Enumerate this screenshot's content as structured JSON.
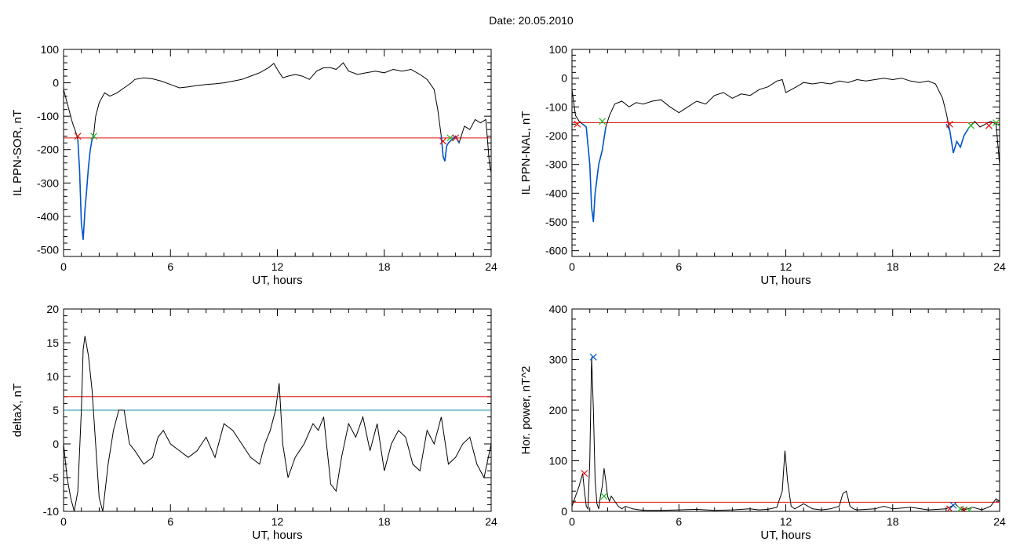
{
  "page": {
    "title": "Date:  20.05.2010"
  },
  "colors": {
    "black": "#000000",
    "red": "#e01010",
    "green": "#22bb22",
    "blue": "#0055cc",
    "cyan": "#1a8fa0"
  },
  "chart_data": [
    {
      "type": "line",
      "id": "sor",
      "xlabel": "UT, hours",
      "ylabel": "IL PPN-SOR, nT",
      "xlim": [
        0,
        24
      ],
      "ylim": [
        -520,
        100
      ],
      "xticks": [
        0,
        6,
        12,
        18,
        24
      ],
      "yticks": [
        -500,
        -400,
        -300,
        -200,
        -100,
        0,
        100
      ],
      "series": [
        {
          "color": "black",
          "x": [
            0,
            0.1,
            0.3,
            0.5,
            0.7,
            0.8,
            0.9,
            1.0,
            1.1,
            1.2,
            1.3,
            1.4,
            1.5,
            1.6,
            1.7,
            1.8,
            2.0,
            2.3,
            2.6,
            3.0,
            3.4,
            3.8,
            4.0,
            4.5,
            5.0,
            5.5,
            6.0,
            6.5,
            7.0,
            7.5,
            8.0,
            8.5,
            9.0,
            9.5,
            10.0,
            10.5,
            11.0,
            11.5,
            11.8,
            12.0,
            12.3,
            12.6,
            13.0,
            13.4,
            13.8,
            14.2,
            14.6,
            15.0,
            15.3,
            15.7,
            16.0,
            16.5,
            17.0,
            17.5,
            18.0,
            18.5,
            19.0,
            19.5,
            20.0,
            20.4,
            20.8,
            21.0,
            21.2,
            21.3,
            21.4,
            21.5,
            21.6,
            21.8,
            22.0,
            22.2,
            22.5,
            22.8,
            23.1,
            23.4,
            23.7,
            23.9,
            24.0
          ],
          "y": [
            -20,
            -40,
            -80,
            -120,
            -150,
            -170,
            -260,
            -420,
            -470,
            -380,
            -320,
            -250,
            -200,
            -170,
            -150,
            -100,
            -60,
            -30,
            -40,
            -30,
            -15,
            0,
            10,
            15,
            12,
            5,
            -5,
            -15,
            -12,
            -8,
            -5,
            -3,
            0,
            5,
            10,
            20,
            30,
            45,
            58,
            40,
            15,
            20,
            25,
            20,
            10,
            35,
            45,
            45,
            40,
            60,
            35,
            25,
            30,
            35,
            30,
            40,
            35,
            40,
            25,
            10,
            -20,
            -80,
            -160,
            -220,
            -235,
            -190,
            -180,
            -170,
            -160,
            -180,
            -130,
            -140,
            -110,
            -120,
            -110,
            -240,
            -270
          ]
        },
        {
          "color": "blue",
          "x": [
            0.8,
            0.9,
            1.0,
            1.1,
            1.2,
            1.3,
            1.4,
            1.5,
            1.6,
            1.7
          ],
          "y": [
            -170,
            -260,
            -420,
            -470,
            -380,
            -320,
            -250,
            -200,
            -170,
            -160
          ]
        },
        {
          "color": "blue",
          "x": [
            21.2,
            21.3,
            21.4,
            21.5,
            21.6,
            21.8,
            22.0,
            22.2
          ],
          "y": [
            -160,
            -220,
            -235,
            -190,
            -180,
            -170,
            -160,
            -180
          ]
        }
      ],
      "hlines": [
        {
          "y": -165,
          "color": "red"
        }
      ],
      "markers": [
        {
          "x": 0.8,
          "y": -160,
          "color": "red",
          "symbol": "x"
        },
        {
          "x": 1.7,
          "y": -160,
          "color": "green",
          "symbol": "x"
        },
        {
          "x": 21.3,
          "y": -175,
          "color": "red",
          "symbol": "x"
        },
        {
          "x": 21.7,
          "y": -165,
          "color": "green",
          "symbol": "x"
        },
        {
          "x": 22.0,
          "y": -165,
          "color": "red",
          "symbol": "x"
        }
      ]
    },
    {
      "type": "line",
      "id": "nal",
      "xlabel": "UT, hours",
      "ylabel": "IL PPN-NAL, nT",
      "xlim": [
        0,
        24
      ],
      "ylim": [
        -620,
        100
      ],
      "xticks": [
        0,
        6,
        12,
        18,
        24
      ],
      "yticks": [
        -600,
        -500,
        -400,
        -300,
        -200,
        -100,
        0,
        100
      ],
      "series": [
        {
          "color": "black",
          "x": [
            0,
            0.2,
            0.4,
            0.6,
            0.8,
            1.0,
            1.1,
            1.2,
            1.3,
            1.5,
            1.7,
            1.9,
            2.1,
            2.4,
            2.8,
            3.2,
            3.6,
            4.0,
            4.5,
            5.0,
            5.5,
            6.0,
            6.5,
            7.0,
            7.5,
            8.0,
            8.5,
            9.0,
            9.5,
            10.0,
            10.5,
            11.0,
            11.5,
            11.8,
            12.0,
            12.3,
            12.6,
            13.0,
            13.5,
            14.0,
            14.5,
            15.0,
            15.5,
            16.0,
            16.5,
            17.0,
            17.5,
            18.0,
            18.5,
            19.0,
            19.5,
            20.0,
            20.4,
            20.8,
            21.0,
            21.2,
            21.4,
            21.6,
            21.8,
            22.0,
            22.3,
            22.6,
            22.9,
            23.2,
            23.5,
            23.8,
            24.0
          ],
          "y": [
            -40,
            -130,
            -150,
            -160,
            -170,
            -300,
            -450,
            -500,
            -400,
            -300,
            -250,
            -170,
            -130,
            -90,
            -80,
            -100,
            -85,
            -90,
            -80,
            -75,
            -100,
            -120,
            -100,
            -80,
            -90,
            -60,
            -50,
            -70,
            -55,
            -60,
            -40,
            -30,
            -10,
            -5,
            -50,
            -40,
            -30,
            -15,
            -20,
            -15,
            -20,
            -10,
            -15,
            -5,
            -10,
            -5,
            0,
            -5,
            0,
            -10,
            -15,
            -10,
            -20,
            -70,
            -120,
            -180,
            -260,
            -220,
            -240,
            -200,
            -170,
            -150,
            -170,
            -160,
            -150,
            -160,
            -300
          ]
        },
        {
          "color": "blue",
          "x": [
            0.6,
            0.8,
            1.0,
            1.1,
            1.2,
            1.3,
            1.5,
            1.7,
            1.9
          ],
          "y": [
            -160,
            -170,
            -300,
            -450,
            -500,
            -400,
            -300,
            -250,
            -170
          ]
        },
        {
          "color": "blue",
          "x": [
            21.0,
            21.2,
            21.4,
            21.6,
            21.8,
            22.0,
            22.3
          ],
          "y": [
            -160,
            -180,
            -260,
            -220,
            -240,
            -200,
            -170
          ]
        }
      ],
      "hlines": [
        {
          "y": -155,
          "color": "red"
        }
      ],
      "markers": [
        {
          "x": 0.3,
          "y": -160,
          "color": "red",
          "symbol": "x"
        },
        {
          "x": 1.7,
          "y": -150,
          "color": "green",
          "symbol": "x"
        },
        {
          "x": 21.2,
          "y": -160,
          "color": "red",
          "symbol": "x"
        },
        {
          "x": 22.4,
          "y": -165,
          "color": "green",
          "symbol": "x"
        },
        {
          "x": 23.4,
          "y": -165,
          "color": "red",
          "symbol": "x"
        },
        {
          "x": 23.8,
          "y": -155,
          "color": "green",
          "symbol": "x"
        }
      ]
    },
    {
      "type": "line",
      "id": "deltax",
      "xlabel": "UT, hours",
      "ylabel": "deltaX, nT",
      "xlim": [
        0,
        24
      ],
      "ylim": [
        -10,
        20
      ],
      "xticks": [
        0,
        6,
        12,
        18,
        24
      ],
      "yticks": [
        -10,
        -5,
        0,
        5,
        10,
        15,
        20
      ],
      "series": [
        {
          "color": "black",
          "x": [
            0,
            0.2,
            0.4,
            0.6,
            0.8,
            1.0,
            1.1,
            1.2,
            1.4,
            1.6,
            1.8,
            2.0,
            2.2,
            2.5,
            2.8,
            3.1,
            3.4,
            3.7,
            4.0,
            4.5,
            5.0,
            5.3,
            5.6,
            6.0,
            6.5,
            7.0,
            7.5,
            8.0,
            8.5,
            9.0,
            9.5,
            10.0,
            10.5,
            11.0,
            11.3,
            11.6,
            11.9,
            12.1,
            12.3,
            12.6,
            13.0,
            13.5,
            14.0,
            14.3,
            14.6,
            15.0,
            15.3,
            15.6,
            16.0,
            16.4,
            16.8,
            17.2,
            17.6,
            18.0,
            18.4,
            18.8,
            19.2,
            19.6,
            20.0,
            20.4,
            20.8,
            21.2,
            21.6,
            22.0,
            22.4,
            22.8,
            23.2,
            23.6,
            24.0
          ],
          "y": [
            0,
            -5,
            -8,
            -10,
            -7,
            5,
            14,
            16,
            13,
            8,
            0,
            -8,
            -10,
            -3,
            2,
            5,
            5,
            0,
            -1,
            -3,
            -2,
            1,
            2,
            0,
            -1,
            -2,
            -1,
            1,
            -2,
            3,
            2,
            0,
            -2,
            -3,
            0,
            2,
            5,
            9,
            0,
            -5,
            -2,
            0,
            3,
            2,
            4,
            -6,
            -7,
            -2,
            3,
            1,
            4,
            -1,
            3,
            -4,
            0,
            2,
            1,
            -3,
            -4,
            2,
            0,
            4,
            -3,
            -2,
            0,
            1,
            -3,
            -5,
            0
          ]
        }
      ],
      "hlines": [
        {
          "y": 7,
          "color": "red"
        },
        {
          "y": 5,
          "color": "cyan"
        }
      ],
      "markers": []
    },
    {
      "type": "line",
      "id": "power",
      "xlabel": "UT, hours",
      "ylabel": "Hor. power, nT^2",
      "xlim": [
        0,
        24
      ],
      "ylim": [
        0,
        400
      ],
      "xticks": [
        0,
        6,
        12,
        18,
        24
      ],
      "yticks": [
        0,
        100,
        200,
        300,
        400
      ],
      "series": [
        {
          "color": "black",
          "x": [
            0,
            0.2,
            0.4,
            0.6,
            0.7,
            0.8,
            0.9,
            1.0,
            1.1,
            1.2,
            1.3,
            1.4,
            1.5,
            1.6,
            1.7,
            1.8,
            1.9,
            2.0,
            2.1,
            2.2,
            2.4,
            2.6,
            2.8,
            3.0,
            3.4,
            3.8,
            4.2,
            5.0,
            6.0,
            7.0,
            8.0,
            9.0,
            10.0,
            10.5,
            11.0,
            11.5,
            11.8,
            11.95,
            12.1,
            12.3,
            12.5,
            13.0,
            13.5,
            14.0,
            14.5,
            15.0,
            15.2,
            15.4,
            15.6,
            15.8,
            16.0,
            17.0,
            17.5,
            18.0,
            19.0,
            20.0,
            21.0,
            21.3,
            21.5,
            21.8,
            22.0,
            22.5,
            23.0,
            23.5,
            23.8,
            24.0
          ],
          "y": [
            10,
            30,
            50,
            75,
            40,
            10,
            5,
            100,
            305,
            200,
            60,
            15,
            5,
            30,
            50,
            85,
            60,
            30,
            20,
            30,
            20,
            10,
            5,
            10,
            5,
            3,
            2,
            2,
            3,
            4,
            2,
            3,
            5,
            3,
            4,
            8,
            40,
            120,
            60,
            10,
            5,
            15,
            5,
            3,
            5,
            10,
            35,
            40,
            10,
            5,
            3,
            5,
            10,
            5,
            8,
            3,
            5,
            10,
            15,
            5,
            3,
            8,
            3,
            10,
            25,
            20
          ]
        }
      ],
      "hlines": [
        {
          "y": 18,
          "color": "red"
        }
      ],
      "markers": [
        {
          "x": 0.7,
          "y": 75,
          "color": "red",
          "symbol": "x"
        },
        {
          "x": 1.2,
          "y": 305,
          "color": "blue",
          "symbol": "x"
        },
        {
          "x": 1.8,
          "y": 30,
          "color": "green",
          "symbol": "x"
        },
        {
          "x": 21.2,
          "y": 5,
          "color": "red",
          "symbol": "x"
        },
        {
          "x": 21.4,
          "y": 12,
          "color": "blue",
          "symbol": "x"
        },
        {
          "x": 21.8,
          "y": 5,
          "color": "green",
          "symbol": "x"
        },
        {
          "x": 22.0,
          "y": 3,
          "color": "red",
          "symbol": "x"
        },
        {
          "x": 22.3,
          "y": 2,
          "color": "green",
          "symbol": "x"
        }
      ]
    }
  ]
}
